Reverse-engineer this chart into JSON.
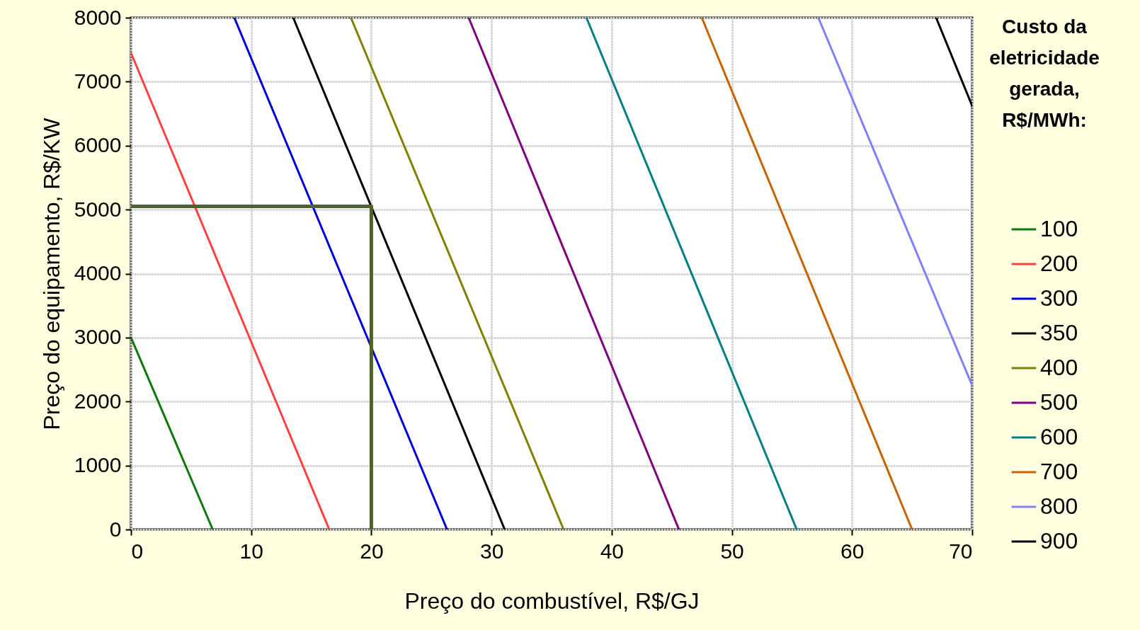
{
  "chart_data": {
    "type": "line",
    "xlabel": "Preço do combustível, R$/GJ",
    "ylabel": "Preço do equipamento, R$/KW",
    "legend_title": "Custo da eletricidade gerada, R$/MWh:",
    "legend": "right",
    "grid": true,
    "marker": "none",
    "line_style": "solid",
    "xlim": [
      0,
      70
    ],
    "xticks": [
      0,
      10,
      20,
      30,
      40,
      50,
      60,
      70
    ],
    "ylim": [
      0,
      8000
    ],
    "yticks": [
      0,
      1000,
      2000,
      3000,
      4000,
      5000,
      6000,
      7000,
      8000
    ],
    "series": [
      {
        "name": "100",
        "color": "#0a7a0a",
        "x": [
          0,
          6.8
        ],
        "values": [
          3000,
          0
        ]
      },
      {
        "name": "200",
        "color": "#ff4040",
        "x": [
          0,
          16.5
        ],
        "values": [
          7450,
          0
        ]
      },
      {
        "name": "300",
        "color": "#0000dd",
        "x": [
          8.6,
          26.3
        ],
        "values": [
          8000,
          0
        ]
      },
      {
        "name": "350",
        "color": "#000000",
        "x": [
          13.5,
          31.1
        ],
        "values": [
          8000,
          0
        ]
      },
      {
        "name": "400",
        "color": "#808000",
        "x": [
          18.3,
          36.0
        ],
        "values": [
          8000,
          0
        ]
      },
      {
        "name": "500",
        "color": "#800080",
        "x": [
          28.1,
          45.6
        ],
        "values": [
          8000,
          0
        ]
      },
      {
        "name": "600",
        "color": "#008080",
        "x": [
          37.9,
          55.4
        ],
        "values": [
          8000,
          0
        ]
      },
      {
        "name": "700",
        "color": "#c86400",
        "x": [
          47.5,
          65.0
        ],
        "values": [
          8000,
          0
        ]
      },
      {
        "name": "800",
        "color": "#8080ff",
        "x": [
          57.2,
          70
        ],
        "values": [
          8000,
          2250
        ]
      },
      {
        "name": "900",
        "color": "#000000",
        "x": [
          67.0,
          70
        ],
        "values": [
          8000,
          6620
        ]
      },
      {
        "color": "#4f6228",
        "x": [
          0,
          20,
          20
        ],
        "values": [
          5050,
          5050,
          0
        ]
      }
    ]
  }
}
